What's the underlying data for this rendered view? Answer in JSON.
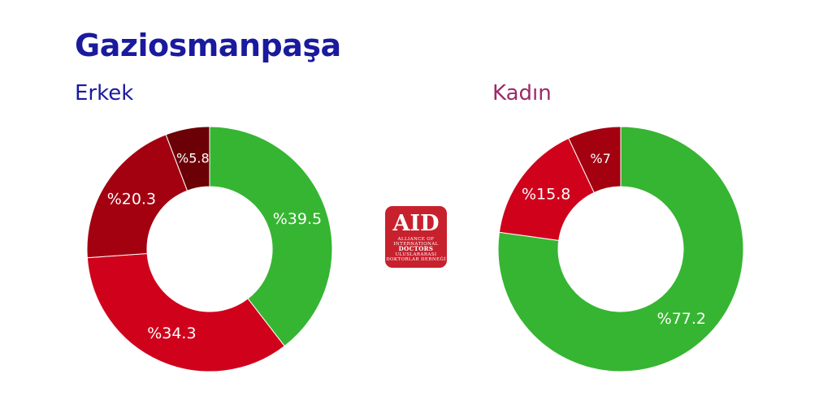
{
  "header": {
    "title": "Gaziosmanpaşa"
  },
  "chart_data": [
    {
      "type": "pie",
      "title": "Erkek",
      "categories": [
        "",
        "",
        "",
        ""
      ],
      "values": [
        39.5,
        34.3,
        20.3,
        5.8
      ],
      "labels": [
        "%39.5",
        "%34.3",
        "%20.3",
        "%5.8"
      ],
      "colors": [
        "#36b532",
        "#d0021b",
        "#a30010",
        "#6b0006"
      ]
    },
    {
      "type": "pie",
      "title": "Kadın",
      "categories": [
        "",
        "",
        ""
      ],
      "values": [
        77.2,
        15.8,
        7
      ],
      "labels": [
        "%77.2",
        "%15.8",
        "%7"
      ],
      "colors": [
        "#36b532",
        "#d0021b",
        "#a30010"
      ]
    }
  ],
  "logo": {
    "text": "AID",
    "lines": [
      "ALLIANCE OF",
      "INTERNATIONAL",
      "DOCTORS",
      "ULUSLARARASI",
      "DOKTORLAR DERNEĞİ"
    ],
    "color": "#c8212e"
  }
}
